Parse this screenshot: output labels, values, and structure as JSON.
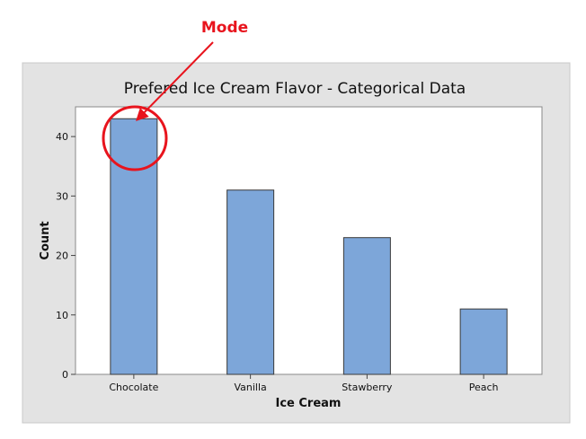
{
  "chart_data": {
    "type": "bar",
    "title": "Prefered Ice Cream Flavor -  Categorical Data",
    "xlabel": "Ice Cream",
    "ylabel": "Count",
    "categories": [
      "Chocolate",
      "Vanilla",
      "Stawberry",
      "Peach"
    ],
    "values": [
      43,
      31,
      23,
      11
    ],
    "ylim": [
      0,
      45
    ],
    "yticks": [
      0,
      10,
      20,
      30,
      40
    ],
    "grid": false,
    "legend": "none",
    "bar_color": "#7da6d9",
    "bar_outline_color": "#3a3a3a",
    "frame_color": "#e3e3e3",
    "annotation": {
      "text": "Mode",
      "color": "#e8141d",
      "target_category": "Chocolate"
    }
  }
}
